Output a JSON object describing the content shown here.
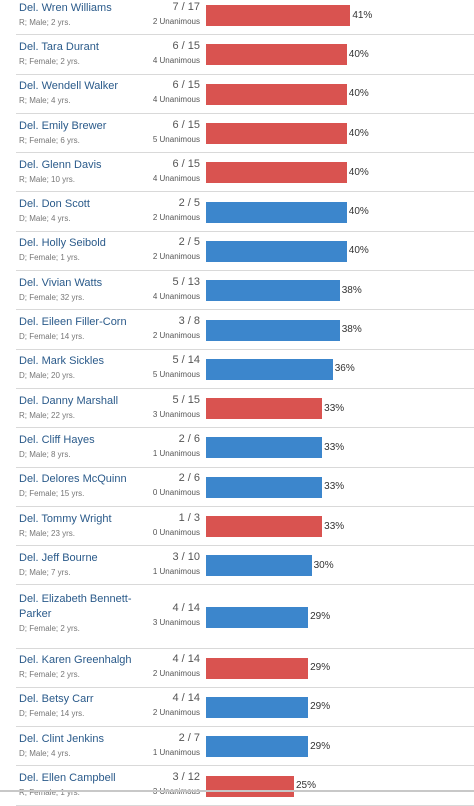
{
  "colors": {
    "R": "#d95350",
    "D": "#3c86cc"
  },
  "chart_data": {
    "type": "bar",
    "x_max_percent": 100,
    "rows": [
      {
        "name": "Del. Wren Williams",
        "meta": "R; Male; 2 yrs.",
        "party": "R",
        "fraction": "7 / 17",
        "unanimous": "2 Unanimous",
        "percent": 41,
        "label": "41%"
      },
      {
        "name": "Del. Tara Durant",
        "meta": "R; Female; 2 yrs.",
        "party": "R",
        "fraction": "6 / 15",
        "unanimous": "4 Unanimous",
        "percent": 40,
        "label": "40%"
      },
      {
        "name": "Del. Wendell Walker",
        "meta": "R; Male; 4 yrs.",
        "party": "R",
        "fraction": "6 / 15",
        "unanimous": "4 Unanimous",
        "percent": 40,
        "label": "40%"
      },
      {
        "name": "Del. Emily Brewer",
        "meta": "R; Female; 6 yrs.",
        "party": "R",
        "fraction": "6 / 15",
        "unanimous": "5 Unanimous",
        "percent": 40,
        "label": "40%"
      },
      {
        "name": "Del. Glenn Davis",
        "meta": "R; Male; 10 yrs.",
        "party": "R",
        "fraction": "6 / 15",
        "unanimous": "4 Unanimous",
        "percent": 40,
        "label": "40%"
      },
      {
        "name": "Del. Don Scott",
        "meta": "D; Male; 4 yrs.",
        "party": "D",
        "fraction": "2 / 5",
        "unanimous": "2 Unanimous",
        "percent": 40,
        "label": "40%"
      },
      {
        "name": "Del. Holly Seibold",
        "meta": "D; Female; 1 yrs.",
        "party": "D",
        "fraction": "2 / 5",
        "unanimous": "2 Unanimous",
        "percent": 40,
        "label": "40%"
      },
      {
        "name": "Del. Vivian Watts",
        "meta": "D; Female; 32 yrs.",
        "party": "D",
        "fraction": "5 / 13",
        "unanimous": "4 Unanimous",
        "percent": 38,
        "label": "38%"
      },
      {
        "name": "Del. Eileen Filler-Corn",
        "meta": "D; Female; 14 yrs.",
        "party": "D",
        "fraction": "3 / 8",
        "unanimous": "2 Unanimous",
        "percent": 38,
        "label": "38%"
      },
      {
        "name": "Del. Mark Sickles",
        "meta": "D; Male; 20 yrs.",
        "party": "D",
        "fraction": "5 / 14",
        "unanimous": "5 Unanimous",
        "percent": 36,
        "label": "36%"
      },
      {
        "name": "Del. Danny Marshall",
        "meta": "R; Male; 22 yrs.",
        "party": "R",
        "fraction": "5 / 15",
        "unanimous": "3 Unanimous",
        "percent": 33,
        "label": "33%"
      },
      {
        "name": "Del. Cliff Hayes",
        "meta": "D; Male; 8 yrs.",
        "party": "D",
        "fraction": "2 / 6",
        "unanimous": "1 Unanimous",
        "percent": 33,
        "label": "33%"
      },
      {
        "name": "Del. Delores McQuinn",
        "meta": "D; Female; 15 yrs.",
        "party": "D",
        "fraction": "2 / 6",
        "unanimous": "0 Unanimous",
        "percent": 33,
        "label": "33%"
      },
      {
        "name": "Del. Tommy Wright",
        "meta": "R; Male; 23 yrs.",
        "party": "R",
        "fraction": "1 / 3",
        "unanimous": "0 Unanimous",
        "percent": 33,
        "label": "33%"
      },
      {
        "name": "Del. Jeff Bourne",
        "meta": "D; Male; 7 yrs.",
        "party": "D",
        "fraction": "3 / 10",
        "unanimous": "1 Unanimous",
        "percent": 30,
        "label": "30%"
      },
      {
        "name": "Del. Elizabeth Bennett-Parker",
        "meta": "D; Female; 2 yrs.",
        "party": "D",
        "fraction": "4 / 14",
        "unanimous": "3 Unanimous",
        "percent": 29,
        "label": "29%"
      },
      {
        "name": "Del. Karen Greenhalgh",
        "meta": "R; Female; 2 yrs.",
        "party": "R",
        "fraction": "4 / 14",
        "unanimous": "2 Unanimous",
        "percent": 29,
        "label": "29%"
      },
      {
        "name": "Del. Betsy Carr",
        "meta": "D; Female; 14 yrs.",
        "party": "D",
        "fraction": "4 / 14",
        "unanimous": "2 Unanimous",
        "percent": 29,
        "label": "29%"
      },
      {
        "name": "Del. Clint Jenkins",
        "meta": "D; Male; 4 yrs.",
        "party": "D",
        "fraction": "2 / 7",
        "unanimous": "1 Unanimous",
        "percent": 29,
        "label": "29%"
      },
      {
        "name": "Del. Ellen Campbell",
        "meta": "R; Female; 1 yrs.",
        "party": "R",
        "fraction": "3 / 12",
        "unanimous": "3 Unanimous",
        "percent": 25,
        "label": "25%"
      }
    ]
  }
}
